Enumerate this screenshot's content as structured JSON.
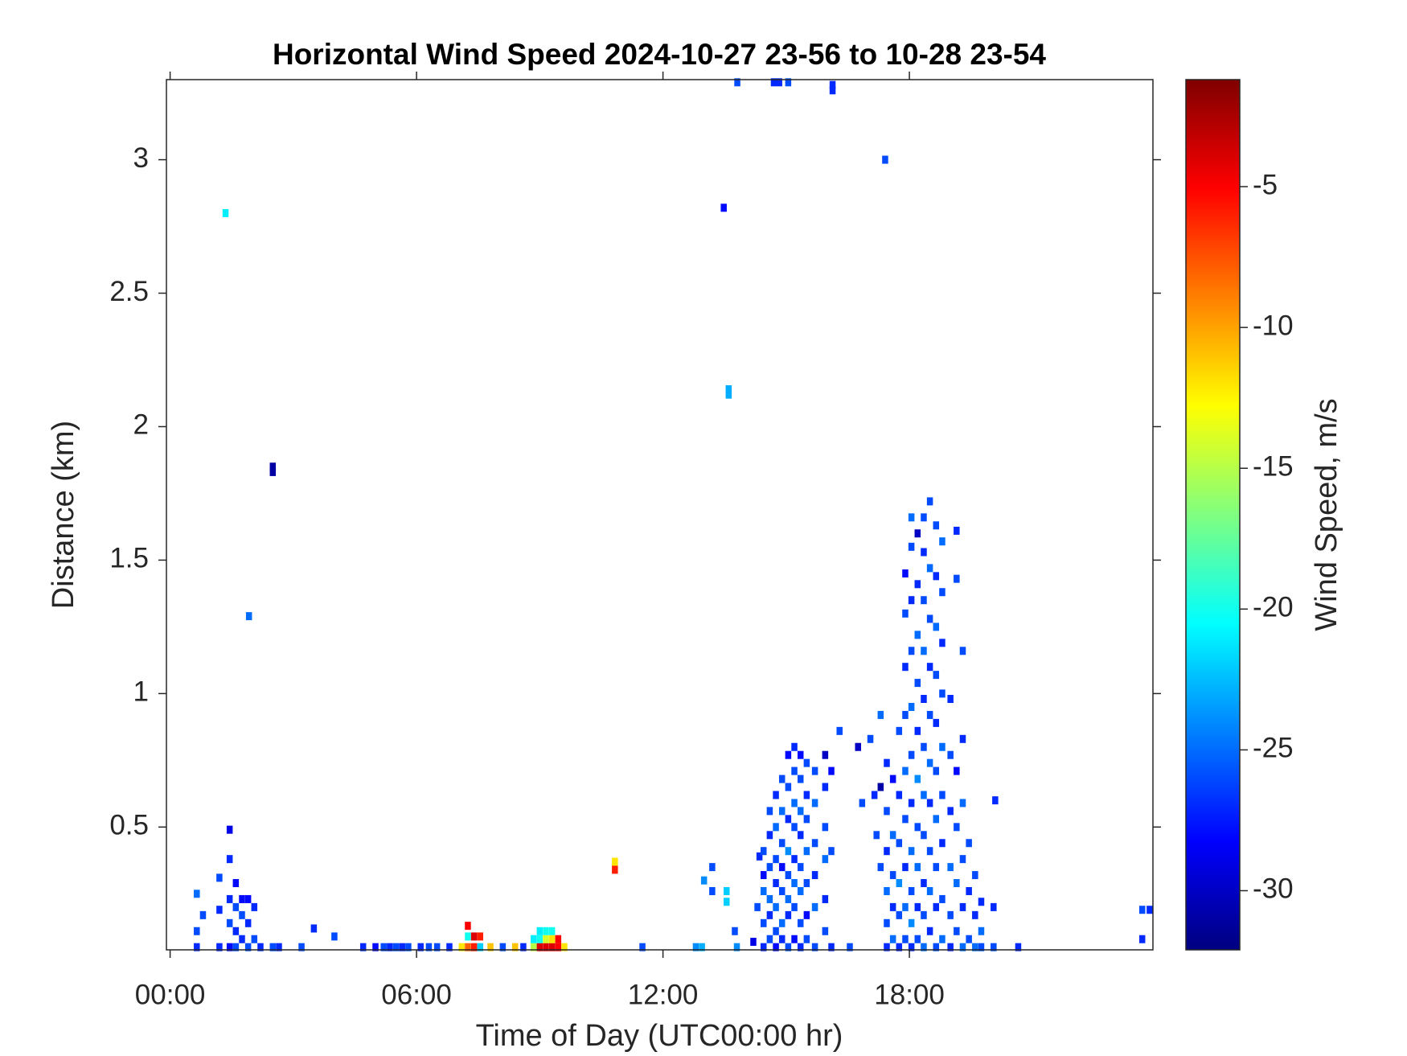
{
  "chart_data": {
    "type": "heatmap",
    "title": "Horizontal Wind Speed 2024-10-27 23-56 to 10-28 23-54",
    "xlabel": "Time of Day (UTC00:00 hr)",
    "ylabel": "Distance (km)",
    "colorbar_label": "Wind Speed, m/s",
    "colormap": "jet",
    "xlim": [
      -0.09,
      23.93
    ],
    "xticks": [
      {
        "value": 0,
        "label": "00:00"
      },
      {
        "value": 6,
        "label": "06:00"
      },
      {
        "value": 12,
        "label": "12:00"
      },
      {
        "value": 18,
        "label": "18:00"
      }
    ],
    "ylim": [
      0.04,
      3.3
    ],
    "yticks": [
      0.5,
      1,
      1.5,
      2,
      2.5,
      3
    ],
    "clim": [
      -32.1,
      -1.2
    ],
    "cticks": [
      -30,
      -25,
      -20,
      -15,
      -10,
      -5
    ],
    "cells": [
      [
        1.35,
        2.8,
        -21
      ],
      [
        1.92,
        1.29,
        -25
      ],
      [
        2.5,
        1.85,
        -31
      ],
      [
        2.5,
        1.83,
        -31
      ],
      [
        13.48,
        2.82,
        -28
      ],
      [
        13.6,
        2.14,
        -23
      ],
      [
        13.6,
        2.12,
        -23
      ],
      [
        17.41,
        3.0,
        -26
      ],
      [
        13.81,
        3.29,
        -26
      ],
      [
        14.83,
        3.29,
        -27
      ],
      [
        14.7,
        3.29,
        -27
      ],
      [
        15.05,
        3.29,
        -26
      ],
      [
        16.13,
        3.28,
        -27
      ],
      [
        16.13,
        3.26,
        -27
      ],
      [
        10.83,
        0.37,
        -12
      ],
      [
        10.83,
        0.34,
        -6
      ],
      [
        20.09,
        0.6,
        -27
      ],
      [
        23.67,
        0.19,
        -26
      ],
      [
        23.85,
        0.19,
        -27
      ],
      [
        23.67,
        0.08,
        -27
      ],
      [
        0.65,
        0.05,
        -27
      ],
      [
        0.65,
        0.11,
        -26
      ],
      [
        0.65,
        0.25,
        -25
      ],
      [
        0.8,
        0.17,
        -26
      ],
      [
        1.2,
        0.05,
        -27
      ],
      [
        1.2,
        0.19,
        -27
      ],
      [
        1.2,
        0.31,
        -26
      ],
      [
        1.45,
        0.05,
        -28
      ],
      [
        1.45,
        0.14,
        -26
      ],
      [
        1.45,
        0.23,
        -27
      ],
      [
        1.45,
        0.38,
        -27
      ],
      [
        1.45,
        0.49,
        -29
      ],
      [
        1.6,
        0.05,
        -26
      ],
      [
        1.6,
        0.11,
        -27
      ],
      [
        1.6,
        0.2,
        -26
      ],
      [
        1.6,
        0.29,
        -28
      ],
      [
        1.75,
        0.08,
        -27
      ],
      [
        1.75,
        0.17,
        -26
      ],
      [
        1.75,
        0.23,
        -28
      ],
      [
        1.9,
        0.05,
        -26
      ],
      [
        1.9,
        0.14,
        -27
      ],
      [
        1.9,
        0.23,
        -28
      ],
      [
        2.05,
        0.08,
        -26
      ],
      [
        2.05,
        0.2,
        -27
      ],
      [
        2.2,
        0.05,
        -27
      ],
      [
        2.5,
        0.05,
        -26
      ],
      [
        2.65,
        0.05,
        -27
      ],
      [
        3.2,
        0.05,
        -26
      ],
      [
        3.5,
        0.12,
        -27
      ],
      [
        4.0,
        0.09,
        -26
      ],
      [
        4.7,
        0.05,
        -27
      ],
      [
        5.0,
        0.05,
        -28
      ],
      [
        5.2,
        0.05,
        -26
      ],
      [
        5.35,
        0.05,
        -27
      ],
      [
        5.5,
        0.05,
        -26
      ],
      [
        5.65,
        0.05,
        -27
      ],
      [
        5.8,
        0.05,
        -26
      ],
      [
        6.1,
        0.05,
        -27
      ],
      [
        6.3,
        0.05,
        -26
      ],
      [
        6.5,
        0.05,
        -26
      ],
      [
        6.8,
        0.05,
        -27
      ],
      [
        7.1,
        0.05,
        -12
      ],
      [
        7.25,
        0.05,
        -8
      ],
      [
        7.25,
        0.09,
        -20
      ],
      [
        7.25,
        0.13,
        -5
      ],
      [
        7.4,
        0.05,
        -6
      ],
      [
        7.4,
        0.09,
        -4
      ],
      [
        7.55,
        0.05,
        -22
      ],
      [
        7.55,
        0.09,
        -6
      ],
      [
        7.8,
        0.05,
        -11
      ],
      [
        8.1,
        0.05,
        -26
      ],
      [
        8.4,
        0.05,
        -11
      ],
      [
        8.6,
        0.05,
        -27
      ],
      [
        8.85,
        0.05,
        -15
      ],
      [
        8.85,
        0.08,
        -21
      ],
      [
        9.0,
        0.05,
        -4
      ],
      [
        9.0,
        0.08,
        -20
      ],
      [
        9.0,
        0.11,
        -21
      ],
      [
        9.15,
        0.05,
        -4
      ],
      [
        9.15,
        0.08,
        -14
      ],
      [
        9.15,
        0.11,
        -20
      ],
      [
        9.3,
        0.05,
        -4
      ],
      [
        9.3,
        0.08,
        -12
      ],
      [
        9.3,
        0.11,
        -20
      ],
      [
        9.45,
        0.05,
        -5
      ],
      [
        9.45,
        0.08,
        -5
      ],
      [
        9.6,
        0.05,
        -12
      ],
      [
        11.5,
        0.05,
        -26
      ],
      [
        12.8,
        0.05,
        -24
      ],
      [
        12.95,
        0.05,
        -23
      ],
      [
        13.0,
        0.3,
        -24
      ],
      [
        13.2,
        0.26,
        -26
      ],
      [
        13.2,
        0.35,
        -26
      ],
      [
        13.55,
        0.22,
        -22
      ],
      [
        13.55,
        0.26,
        -22
      ],
      [
        13.75,
        0.11,
        -26
      ],
      [
        13.8,
        0.05,
        -24
      ],
      [
        14.2,
        0.07,
        -29
      ],
      [
        14.3,
        0.2,
        -26
      ],
      [
        14.35,
        0.39,
        -27
      ],
      [
        14.45,
        0.05,
        -27
      ],
      [
        14.45,
        0.14,
        -26
      ],
      [
        14.45,
        0.26,
        -25
      ],
      [
        14.45,
        0.32,
        -28
      ],
      [
        14.45,
        0.41,
        -26
      ],
      [
        14.6,
        0.08,
        -26
      ],
      [
        14.6,
        0.17,
        -27
      ],
      [
        14.6,
        0.23,
        -25
      ],
      [
        14.6,
        0.35,
        -26
      ],
      [
        14.6,
        0.47,
        -27
      ],
      [
        14.6,
        0.56,
        -26
      ],
      [
        14.75,
        0.05,
        -28
      ],
      [
        14.75,
        0.11,
        -26
      ],
      [
        14.75,
        0.2,
        -25
      ],
      [
        14.75,
        0.29,
        -27
      ],
      [
        14.75,
        0.38,
        -26
      ],
      [
        14.75,
        0.5,
        -25
      ],
      [
        14.75,
        0.62,
        -27
      ],
      [
        14.9,
        0.08,
        -27
      ],
      [
        14.9,
        0.14,
        -25
      ],
      [
        14.9,
        0.26,
        -26
      ],
      [
        14.9,
        0.35,
        -28
      ],
      [
        14.9,
        0.44,
        -26
      ],
      [
        14.9,
        0.56,
        -25
      ],
      [
        14.9,
        0.68,
        -26
      ],
      [
        15.05,
        0.05,
        -26
      ],
      [
        15.05,
        0.17,
        -27
      ],
      [
        15.05,
        0.23,
        -25
      ],
      [
        15.05,
        0.32,
        -26
      ],
      [
        15.05,
        0.41,
        -24
      ],
      [
        15.05,
        0.53,
        -27
      ],
      [
        15.05,
        0.65,
        -26
      ],
      [
        15.05,
        0.77,
        -28
      ],
      [
        15.2,
        0.08,
        -28
      ],
      [
        15.2,
        0.2,
        -26
      ],
      [
        15.2,
        0.29,
        -25
      ],
      [
        15.2,
        0.38,
        -27
      ],
      [
        15.2,
        0.5,
        -26
      ],
      [
        15.2,
        0.59,
        -25
      ],
      [
        15.2,
        0.71,
        -26
      ],
      [
        15.2,
        0.8,
        -27
      ],
      [
        15.35,
        0.05,
        -27
      ],
      [
        15.35,
        0.14,
        -26
      ],
      [
        15.35,
        0.26,
        -25
      ],
      [
        15.35,
        0.35,
        -26
      ],
      [
        15.35,
        0.47,
        -27
      ],
      [
        15.35,
        0.56,
        -25
      ],
      [
        15.35,
        0.68,
        -26
      ],
      [
        15.35,
        0.77,
        -28
      ],
      [
        15.5,
        0.08,
        -26
      ],
      [
        15.5,
        0.17,
        -28
      ],
      [
        15.5,
        0.29,
        -26
      ],
      [
        15.5,
        0.41,
        -25
      ],
      [
        15.5,
        0.53,
        -26
      ],
      [
        15.5,
        0.62,
        -27
      ],
      [
        15.5,
        0.74,
        -26
      ],
      [
        15.7,
        0.05,
        -26
      ],
      [
        15.7,
        0.2,
        -25
      ],
      [
        15.7,
        0.32,
        -27
      ],
      [
        15.7,
        0.44,
        -26
      ],
      [
        15.7,
        0.59,
        -25
      ],
      [
        15.7,
        0.71,
        -26
      ],
      [
        15.95,
        0.11,
        -26
      ],
      [
        15.95,
        0.23,
        -27
      ],
      [
        15.95,
        0.38,
        -25
      ],
      [
        15.95,
        0.5,
        -26
      ],
      [
        15.95,
        0.65,
        -27
      ],
      [
        15.95,
        0.77,
        -30
      ],
      [
        16.1,
        0.05,
        -27
      ],
      [
        16.1,
        0.41,
        -26
      ],
      [
        16.1,
        0.71,
        -28
      ],
      [
        16.3,
        0.86,
        -26
      ],
      [
        16.55,
        0.05,
        -26
      ],
      [
        16.75,
        0.8,
        -30
      ],
      [
        16.85,
        0.59,
        -26
      ],
      [
        17.05,
        0.83,
        -26
      ],
      [
        17.15,
        0.62,
        -27
      ],
      [
        17.2,
        0.47,
        -26
      ],
      [
        17.3,
        0.65,
        -31
      ],
      [
        17.3,
        0.92,
        -25
      ],
      [
        17.3,
        0.35,
        -26
      ],
      [
        17.45,
        0.05,
        -27
      ],
      [
        17.45,
        0.14,
        -26
      ],
      [
        17.45,
        0.26,
        -25
      ],
      [
        17.45,
        0.41,
        -27
      ],
      [
        17.45,
        0.56,
        -26
      ],
      [
        17.45,
        0.74,
        -27
      ],
      [
        17.6,
        0.08,
        -25
      ],
      [
        17.6,
        0.2,
        -27
      ],
      [
        17.6,
        0.32,
        -26
      ],
      [
        17.6,
        0.47,
        -25
      ],
      [
        17.6,
        0.68,
        -28
      ],
      [
        17.75,
        0.05,
        -27
      ],
      [
        17.75,
        0.17,
        -26
      ],
      [
        17.75,
        0.29,
        -24
      ],
      [
        17.75,
        0.44,
        -26
      ],
      [
        17.75,
        0.62,
        -27
      ],
      [
        17.75,
        0.86,
        -26
      ],
      [
        17.9,
        0.08,
        -26
      ],
      [
        17.9,
        0.2,
        -25
      ],
      [
        17.9,
        0.35,
        -27
      ],
      [
        17.9,
        0.53,
        -26
      ],
      [
        17.9,
        0.71,
        -25
      ],
      [
        17.9,
        0.92,
        -26
      ],
      [
        17.9,
        1.1,
        -27
      ],
      [
        17.9,
        1.3,
        -26
      ],
      [
        17.9,
        1.45,
        -28
      ],
      [
        18.05,
        0.05,
        -27
      ],
      [
        18.05,
        0.14,
        -24
      ],
      [
        18.05,
        0.26,
        -26
      ],
      [
        18.05,
        0.41,
        -25
      ],
      [
        18.05,
        0.59,
        -27
      ],
      [
        18.05,
        0.77,
        -26
      ],
      [
        18.05,
        0.95,
        -25
      ],
      [
        18.05,
        1.16,
        -26
      ],
      [
        18.05,
        1.35,
        -27
      ],
      [
        18.05,
        1.55,
        -26
      ],
      [
        18.05,
        1.66,
        -25
      ],
      [
        18.2,
        0.08,
        -26
      ],
      [
        18.2,
        0.2,
        -27
      ],
      [
        18.2,
        0.35,
        -25
      ],
      [
        18.2,
        0.5,
        -26
      ],
      [
        18.2,
        0.68,
        -24
      ],
      [
        18.2,
        0.86,
        -27
      ],
      [
        18.2,
        1.04,
        -26
      ],
      [
        18.2,
        1.22,
        -25
      ],
      [
        18.2,
        1.41,
        -27
      ],
      [
        18.2,
        1.6,
        -30
      ],
      [
        18.35,
        0.05,
        -25
      ],
      [
        18.35,
        0.17,
        -26
      ],
      [
        18.35,
        0.29,
        -27
      ],
      [
        18.35,
        0.47,
        -26
      ],
      [
        18.35,
        0.62,
        -25
      ],
      [
        18.35,
        0.8,
        -26
      ],
      [
        18.35,
        0.98,
        -27
      ],
      [
        18.35,
        1.16,
        -25
      ],
      [
        18.35,
        1.35,
        -26
      ],
      [
        18.35,
        1.53,
        -27
      ],
      [
        18.35,
        1.66,
        -26
      ],
      [
        18.5,
        0.11,
        -27
      ],
      [
        18.5,
        0.26,
        -25
      ],
      [
        18.5,
        0.41,
        -26
      ],
      [
        18.5,
        0.59,
        -27
      ],
      [
        18.5,
        0.74,
        -25
      ],
      [
        18.5,
        0.92,
        -26
      ],
      [
        18.5,
        1.1,
        -27
      ],
      [
        18.5,
        1.28,
        -26
      ],
      [
        18.5,
        1.47,
        -25
      ],
      [
        18.5,
        1.72,
        -26
      ],
      [
        18.65,
        0.05,
        -26
      ],
      [
        18.65,
        0.2,
        -27
      ],
      [
        18.65,
        0.35,
        -26
      ],
      [
        18.65,
        0.53,
        -25
      ],
      [
        18.65,
        0.71,
        -26
      ],
      [
        18.65,
        0.89,
        -27
      ],
      [
        18.65,
        1.07,
        -26
      ],
      [
        18.65,
        1.25,
        -25
      ],
      [
        18.65,
        1.44,
        -27
      ],
      [
        18.65,
        1.63,
        -26
      ],
      [
        18.8,
        0.08,
        -25
      ],
      [
        18.8,
        0.23,
        -26
      ],
      [
        18.8,
        0.44,
        -27
      ],
      [
        18.8,
        0.62,
        -26
      ],
      [
        18.8,
        0.8,
        -25
      ],
      [
        18.8,
        1.0,
        -26
      ],
      [
        18.8,
        1.19,
        -27
      ],
      [
        18.8,
        1.38,
        -26
      ],
      [
        18.8,
        1.57,
        -25
      ],
      [
        19.0,
        0.05,
        -27
      ],
      [
        19.0,
        0.17,
        -26
      ],
      [
        19.0,
        0.35,
        -25
      ],
      [
        19.0,
        0.56,
        -27
      ],
      [
        19.0,
        0.77,
        -26
      ],
      [
        19.0,
        0.98,
        -27
      ],
      [
        19.15,
        0.11,
        -26
      ],
      [
        19.15,
        0.29,
        -25
      ],
      [
        19.15,
        0.5,
        -26
      ],
      [
        19.15,
        0.71,
        -28
      ],
      [
        19.15,
        1.43,
        -26
      ],
      [
        19.15,
        1.61,
        -27
      ],
      [
        19.3,
        0.05,
        -25
      ],
      [
        19.3,
        0.2,
        -27
      ],
      [
        19.3,
        0.38,
        -26
      ],
      [
        19.3,
        0.59,
        -25
      ],
      [
        19.3,
        0.83,
        -27
      ],
      [
        19.3,
        1.16,
        -26
      ],
      [
        19.45,
        0.08,
        -26
      ],
      [
        19.45,
        0.26,
        -27
      ],
      [
        19.45,
        0.44,
        -26
      ],
      [
        19.6,
        0.05,
        -25
      ],
      [
        19.6,
        0.17,
        -27
      ],
      [
        19.6,
        0.32,
        -26
      ],
      [
        19.75,
        0.05,
        -26
      ],
      [
        19.75,
        0.11,
        -25
      ],
      [
        19.75,
        0.22,
        -27
      ],
      [
        20.05,
        0.05,
        -26
      ],
      [
        20.05,
        0.2,
        -27
      ],
      [
        20.65,
        0.05,
        -27
      ]
    ]
  }
}
